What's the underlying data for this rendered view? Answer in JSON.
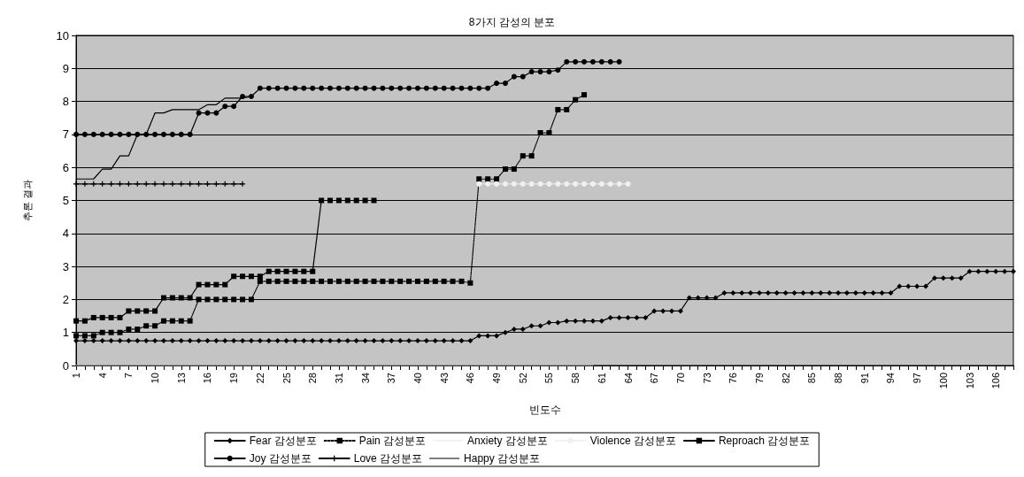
{
  "chart_data": {
    "type": "line",
    "title": "8가지 감성의 분포",
    "xlabel": "빈도수",
    "ylabel": "추론 결과",
    "categories": [
      "1",
      null,
      null,
      "4",
      null,
      null,
      "7",
      null,
      null,
      "10",
      null,
      null,
      "13",
      null,
      null,
      "16",
      null,
      null,
      "19",
      null,
      null,
      "22",
      null,
      null,
      "25",
      null,
      null,
      "28",
      null,
      null,
      "31",
      null,
      null,
      "34",
      null,
      null,
      "37",
      null,
      null,
      "40",
      null,
      null,
      "43",
      null,
      null,
      "46",
      null,
      null,
      "49",
      null,
      null,
      "52",
      null,
      null,
      "55",
      null,
      null,
      "58",
      null,
      null,
      "61",
      null,
      null,
      "64",
      null,
      null,
      "67",
      null,
      null,
      "70",
      null,
      null,
      "73",
      null,
      null,
      "76",
      null,
      null,
      "79",
      null,
      null,
      "82",
      null,
      null,
      "85",
      null,
      null,
      "88",
      null,
      null,
      "91",
      null,
      null,
      "94",
      null,
      null,
      "97",
      null,
      null,
      "100",
      null,
      null,
      "103",
      null,
      null,
      "106",
      null,
      null
    ],
    "ylim": [
      0,
      10
    ],
    "yticks": [
      0,
      1,
      2,
      3,
      4,
      5,
      6,
      7,
      8,
      9,
      10
    ],
    "grid": "y",
    "legend": "bottom",
    "series": [
      {
        "name": "Fear 감성분포",
        "color": "#000000",
        "marker": "diamond",
        "line_style": "solid",
        "values": [
          0.75,
          0.75,
          0.75,
          0.75,
          0.75,
          0.75,
          0.75,
          0.75,
          0.75,
          0.75,
          0.75,
          0.75,
          0.75,
          0.75,
          0.75,
          0.75,
          0.75,
          0.75,
          0.75,
          0.75,
          0.75,
          0.75,
          0.75,
          0.75,
          0.75,
          0.75,
          0.75,
          0.75,
          0.75,
          0.75,
          0.75,
          0.75,
          0.75,
          0.75,
          0.75,
          0.75,
          0.75,
          0.75,
          0.75,
          0.75,
          0.75,
          0.75,
          0.75,
          0.75,
          0.75,
          0.75,
          0.9,
          0.9,
          0.9,
          1.0,
          1.1,
          1.1,
          1.2,
          1.2,
          1.3,
          1.3,
          1.35,
          1.35,
          1.35,
          1.35,
          1.35,
          1.45,
          1.45,
          1.45,
          1.45,
          1.45,
          1.65,
          1.65,
          1.65,
          1.65,
          2.05,
          2.05,
          2.05,
          2.05,
          2.2,
          2.2,
          2.2,
          2.2,
          2.2,
          2.2,
          2.2,
          2.2,
          2.2,
          2.2,
          2.2,
          2.2,
          2.2,
          2.2,
          2.2,
          2.2,
          2.2,
          2.2,
          2.2,
          2.2,
          2.4,
          2.4,
          2.4,
          2.4,
          2.65,
          2.65,
          2.65,
          2.65,
          2.85,
          2.85,
          2.85,
          2.85,
          2.85,
          2.85
        ]
      },
      {
        "name": "Pain 감성분포",
        "color": "#000000",
        "marker": "square",
        "line_style": "dotted",
        "values": [
          0.9,
          0.9,
          0.9,
          1.0,
          1.0,
          1.0,
          1.1,
          1.1,
          1.2,
          1.2,
          1.35,
          1.35,
          1.35,
          1.35,
          2.0,
          2.0,
          2.0,
          2.0,
          2.0,
          2.0,
          2.0,
          2.55,
          2.55,
          2.55,
          2.55,
          2.55,
          2.55,
          2.55,
          2.55,
          2.55,
          2.55,
          2.55,
          2.55,
          2.55,
          2.55,
          2.55,
          2.55,
          2.55,
          2.55,
          2.55,
          2.55,
          2.55,
          2.55,
          2.55,
          2.55,
          2.5,
          5.65,
          5.65,
          5.65,
          5.95,
          5.95,
          6.35,
          6.35,
          7.05,
          7.05,
          7.75,
          7.75,
          8.05,
          8.2,
          null,
          null,
          null,
          null,
          null,
          null,
          null,
          null,
          null,
          null,
          null,
          null,
          null,
          null,
          null,
          null,
          null,
          null,
          null,
          null,
          null,
          null,
          null,
          null,
          null,
          null,
          null,
          null,
          null,
          null,
          null,
          null,
          null,
          null,
          null,
          null,
          null,
          null,
          null,
          null,
          null,
          null,
          null,
          null,
          null,
          null,
          null,
          null,
          null
        ]
      },
      {
        "name": "Anxiety 감성분포",
        "color": "#e6e6e6",
        "marker": "none",
        "line_style": "dotted",
        "values": [
          0,
          0,
          0,
          0,
          0,
          0,
          0,
          0,
          0,
          0,
          0,
          0,
          0,
          0,
          0,
          0,
          0,
          0,
          0,
          0,
          0,
          0,
          0,
          0,
          0,
          0,
          0,
          0,
          0,
          0,
          0,
          0,
          0,
          0,
          0,
          0,
          0,
          0,
          0,
          0,
          0,
          0,
          0,
          0,
          0,
          0,
          0,
          0,
          0,
          0,
          0,
          0,
          0,
          0,
          0,
          0,
          0,
          0,
          0,
          0,
          null,
          null,
          null,
          null,
          null,
          null,
          null,
          null,
          null,
          null,
          null,
          null,
          null,
          null,
          null,
          null,
          null,
          null,
          null,
          null,
          null,
          null,
          null,
          null,
          null,
          null,
          null,
          null,
          null,
          null,
          null,
          null,
          null,
          null,
          null,
          null,
          null,
          null,
          null,
          null,
          null,
          null,
          null,
          null,
          null,
          null,
          null,
          null
        ]
      },
      {
        "name": "Violence 감성분포",
        "color": "#f0f0f0",
        "marker": "circle",
        "line_style": "dotted",
        "values": [
          null,
          null,
          null,
          null,
          null,
          null,
          null,
          null,
          null,
          null,
          null,
          null,
          null,
          null,
          null,
          null,
          null,
          null,
          null,
          null,
          null,
          null,
          null,
          null,
          null,
          null,
          null,
          null,
          null,
          null,
          null,
          null,
          null,
          null,
          null,
          null,
          null,
          null,
          null,
          null,
          null,
          null,
          null,
          null,
          null,
          null,
          5.5,
          5.5,
          5.5,
          5.5,
          5.5,
          5.5,
          5.5,
          5.5,
          5.5,
          5.5,
          5.5,
          5.5,
          5.5,
          5.5,
          5.5,
          5.5,
          5.5,
          5.5,
          null,
          null,
          null,
          null,
          null,
          null,
          null,
          null,
          null,
          null,
          null,
          null,
          null,
          null,
          null,
          null,
          null,
          null,
          null,
          null,
          null,
          null,
          null,
          null,
          null,
          null,
          null,
          null,
          null,
          null,
          null,
          null,
          null,
          null,
          null,
          null,
          null,
          null,
          null,
          null,
          null,
          null,
          null,
          null
        ]
      },
      {
        "name": "Reproach 감성분포",
        "color": "#000000",
        "marker": "square",
        "line_style": "solid",
        "values": [
          1.35,
          1.35,
          1.45,
          1.45,
          1.45,
          1.45,
          1.65,
          1.65,
          1.65,
          1.65,
          2.05,
          2.05,
          2.05,
          2.05,
          2.45,
          2.45,
          2.45,
          2.45,
          2.7,
          2.7,
          2.7,
          2.7,
          2.85,
          2.85,
          2.85,
          2.85,
          2.85,
          2.85,
          5.0,
          5.0,
          5.0,
          5.0,
          5.0,
          5.0,
          5.0,
          null,
          null,
          null,
          null,
          null,
          null,
          null,
          null,
          null,
          null,
          null,
          null,
          null,
          null,
          null,
          null,
          null,
          null,
          null,
          null,
          null,
          null,
          null,
          null,
          null,
          null,
          null,
          null,
          null,
          null,
          null,
          null,
          null,
          null,
          null,
          null,
          null,
          null,
          null,
          null,
          null,
          null,
          null,
          null,
          null,
          null,
          null,
          null,
          null,
          null,
          null,
          null,
          null,
          null,
          null,
          null,
          null,
          null,
          null,
          null,
          null,
          null,
          null,
          null,
          null,
          null,
          null,
          null,
          null,
          null,
          null,
          null,
          null
        ]
      },
      {
        "name": "Joy 감성분포",
        "color": "#000000",
        "marker": "circle",
        "line_style": "solid",
        "values": [
          7.0,
          7.0,
          7.0,
          7.0,
          7.0,
          7.0,
          7.0,
          7.0,
          7.0,
          7.0,
          7.0,
          7.0,
          7.0,
          7.0,
          7.65,
          7.65,
          7.65,
          7.85,
          7.85,
          8.15,
          8.15,
          8.4,
          8.4,
          8.4,
          8.4,
          8.4,
          8.4,
          8.4,
          8.4,
          8.4,
          8.4,
          8.4,
          8.4,
          8.4,
          8.4,
          8.4,
          8.4,
          8.4,
          8.4,
          8.4,
          8.4,
          8.4,
          8.4,
          8.4,
          8.4,
          8.4,
          8.4,
          8.4,
          8.55,
          8.55,
          8.75,
          8.75,
          8.9,
          8.9,
          8.9,
          8.95,
          9.2,
          9.2,
          9.2,
          9.2,
          9.2,
          9.2,
          9.2,
          null,
          null,
          null,
          null,
          null,
          null,
          null,
          null,
          null,
          null,
          null,
          null,
          null,
          null,
          null,
          null,
          null,
          null,
          null,
          null,
          null,
          null,
          null,
          null,
          null,
          null,
          null,
          null,
          null,
          null,
          null,
          null,
          null,
          null,
          null,
          null,
          null,
          null,
          null,
          null,
          null,
          null,
          null,
          null,
          null
        ]
      },
      {
        "name": "Love 감성분포",
        "color": "#000000",
        "marker": "cross",
        "line_style": "solid",
        "values": [
          5.5,
          5.5,
          5.5,
          5.5,
          5.5,
          5.5,
          5.5,
          5.5,
          5.5,
          5.5,
          5.5,
          5.5,
          5.5,
          5.5,
          5.5,
          5.5,
          5.5,
          5.5,
          5.5,
          5.5,
          null,
          null,
          null,
          null,
          null,
          null,
          null,
          null,
          null,
          null,
          null,
          null,
          null,
          null,
          null,
          null,
          null,
          null,
          null,
          null,
          null,
          null,
          null,
          null,
          null,
          null,
          null,
          null,
          null,
          null,
          null,
          null,
          null,
          null,
          null,
          null,
          null,
          null,
          null,
          null,
          null,
          null,
          null,
          null,
          null,
          null,
          null,
          null,
          null,
          null,
          null,
          null,
          null,
          null,
          null,
          null,
          null,
          null,
          null,
          null,
          null,
          null,
          null,
          null,
          null,
          null,
          null,
          null,
          null,
          null,
          null,
          null,
          null,
          null,
          null,
          null,
          null,
          null,
          null,
          null,
          null,
          null,
          null,
          null,
          null,
          null,
          null,
          null
        ]
      },
      {
        "name": "Happy 감성분포",
        "color": "#000000",
        "marker": "none",
        "line_style": "solid",
        "values": [
          5.65,
          5.65,
          5.65,
          5.95,
          5.95,
          6.35,
          6.35,
          7.0,
          7.0,
          7.65,
          7.65,
          7.75,
          7.75,
          7.75,
          7.75,
          7.9,
          7.9,
          8.1,
          8.1,
          8.1,
          8.15,
          null,
          null,
          null,
          null,
          null,
          null,
          null,
          null,
          null,
          null,
          null,
          null,
          null,
          null,
          null,
          null,
          null,
          null,
          null,
          null,
          null,
          null,
          null,
          null,
          null,
          null,
          null,
          null,
          null,
          null,
          null,
          null,
          null,
          null,
          null,
          null,
          null,
          null,
          null,
          null,
          null,
          null,
          null,
          null,
          null,
          null,
          null,
          null,
          null,
          null,
          null,
          null,
          null,
          null,
          null,
          null,
          null,
          null,
          null,
          null,
          null,
          null,
          null,
          null,
          null,
          null,
          null,
          null,
          null,
          null,
          null,
          null,
          null,
          null,
          null,
          null,
          null,
          null,
          null,
          null,
          null,
          null,
          null,
          null,
          null,
          null,
          null
        ]
      }
    ]
  }
}
